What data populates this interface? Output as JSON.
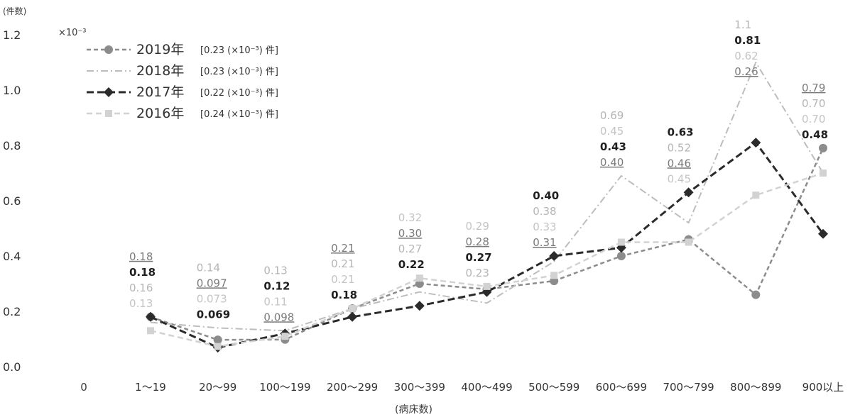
{
  "chart_data": {
    "type": "line",
    "y_unit_label": "(件数)",
    "y_multiplier": "×10⁻³",
    "x_unit_label": "(病床数)",
    "x_origin_label": "0",
    "ylim": [
      0.0,
      1.2
    ],
    "yticks": [
      "0.0",
      "0.2",
      "0.4",
      "0.6",
      "0.8",
      "1.0",
      "1.2"
    ],
    "categories": [
      "1～19",
      "20～99",
      "100～199",
      "200～299",
      "300～399",
      "400～499",
      "500～599",
      "600～699",
      "700～799",
      "800～899",
      "900以上"
    ],
    "legend_position": "top-left",
    "grid": false,
    "series": [
      {
        "name": "2019年",
        "legend_avg": "[0.23 (×10⁻³) 件]",
        "color": "#8c8c8c",
        "marker": "circle",
        "dash": "6,4",
        "width": 2.5,
        "values": [
          0.18,
          0.097,
          0.098,
          0.21,
          0.3,
          0.28,
          0.31,
          0.4,
          0.46,
          0.26,
          0.79
        ],
        "labels": [
          "0.18",
          "0.097",
          "0.098",
          "0.21",
          "0.30",
          "0.28",
          "0.31",
          "0.40",
          "0.46",
          "0.26",
          "0.79"
        ]
      },
      {
        "name": "2018年",
        "legend_avg": "[0.23 (×10⁻³) 件]",
        "color": "#bdbdbd",
        "marker": "none",
        "dash": "10,4,2,4",
        "width": 2,
        "values": [
          0.16,
          0.14,
          0.13,
          0.21,
          0.27,
          0.23,
          0.38,
          0.69,
          0.52,
          1.1,
          0.7
        ],
        "labels": [
          "0.16",
          "0.14",
          "0.13",
          "0.21",
          "0.27",
          "0.23",
          "0.38",
          "0.69",
          "0.52",
          "1.1",
          "0.70"
        ]
      },
      {
        "name": "2017年",
        "legend_avg": "[0.22 (×10⁻³) 件]",
        "color": "#2b2b2b",
        "marker": "diamond",
        "dash": "10,5",
        "width": 3,
        "values": [
          0.18,
          0.069,
          0.12,
          0.18,
          0.22,
          0.27,
          0.4,
          0.43,
          0.63,
          0.81,
          0.48
        ],
        "labels": [
          "0.18",
          "0.069",
          "0.12",
          "0.18",
          "0.22",
          "0.27",
          "0.40",
          "0.43",
          "0.63",
          "0.81",
          "0.48"
        ]
      },
      {
        "name": "2016年",
        "legend_avg": "[0.24 (×10⁻³) 件]",
        "color": "#d2d2d2",
        "marker": "square",
        "dash": "8,5",
        "width": 2.5,
        "values": [
          0.13,
          0.073,
          0.11,
          0.21,
          0.32,
          0.29,
          0.33,
          0.45,
          0.45,
          0.62,
          0.7
        ],
        "labels": [
          "0.13",
          "0.073",
          "0.11",
          "0.21",
          "0.32",
          "0.29",
          "0.33",
          "0.45",
          "0.45",
          "0.62",
          "0.70"
        ]
      }
    ]
  }
}
